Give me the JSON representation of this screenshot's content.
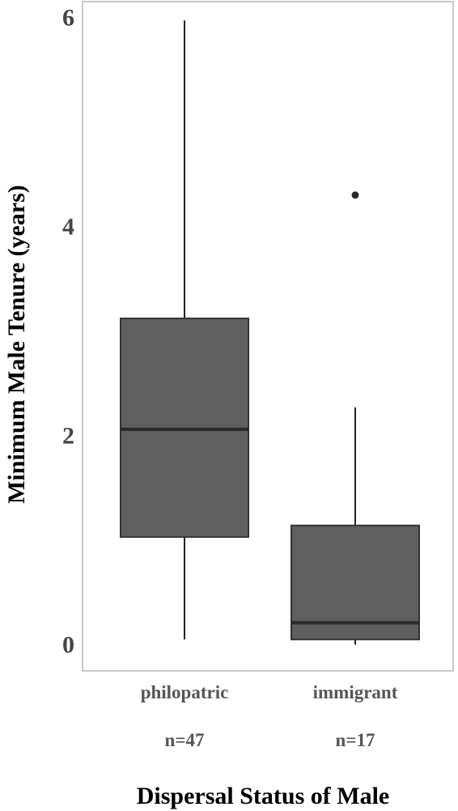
{
  "chart_data": {
    "type": "boxplot",
    "xlabel": "Dispersal Status of Male",
    "ylabel": "Minimum Male Tenure (years)",
    "ylim": [
      -0.25,
      6.15
    ],
    "yticks": [
      0,
      2,
      4,
      6
    ],
    "grid": false,
    "categories": [
      "philopatric",
      "immigrant"
    ],
    "sample_sizes": [
      "n=47",
      "n=17"
    ],
    "boxes": [
      {
        "category": "philopatric",
        "min": 0.05,
        "q1": 1.03,
        "median": 2.06,
        "q3": 3.12,
        "max": 5.97,
        "outliers": []
      },
      {
        "category": "immigrant",
        "min": 0.0,
        "q1": 0.05,
        "median": 0.21,
        "q3": 1.14,
        "max": 2.27,
        "outliers": [
          4.3
        ]
      }
    ],
    "colors": {
      "box_fill": "#5f5f5f",
      "box_stroke": "#333333",
      "frame": "#c8c8c8"
    }
  }
}
